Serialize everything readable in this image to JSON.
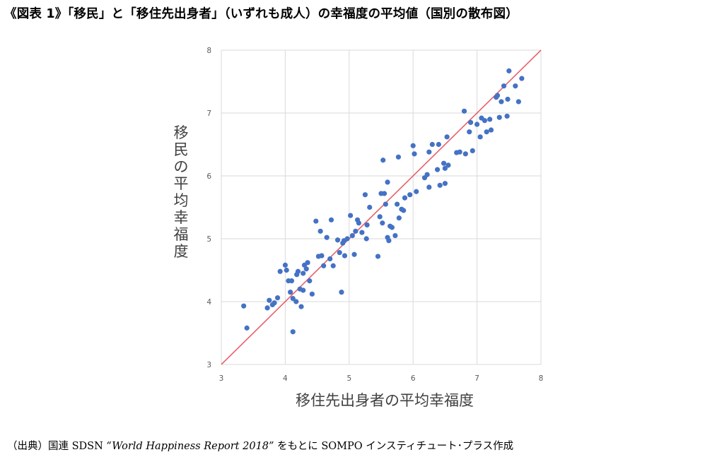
{
  "header": {
    "title": "《図表 1》「移民」と「移住先出身者」（いずれも成人）の幸福度の平均値（国別の散布図）"
  },
  "footer": {
    "source_prefix": "（出典）国連  SDSN ",
    "source_report": "“World Happiness Report 2018”",
    "source_suffix": " をもとに SOMPO インスティチュート･プラス作成"
  },
  "colors": {
    "points": "#4472c4",
    "diagonal": "#e8606a",
    "grid": "#d9d9d9",
    "tick_text": "#595959",
    "axis_title": "#404040"
  },
  "chart_data": {
    "type": "scatter",
    "title": "",
    "xlabel": "移住先出身者の平均幸福度",
    "ylabel": "移民の平均幸福度",
    "xlim": [
      3,
      8
    ],
    "ylim": [
      3,
      8
    ],
    "xticks": [
      "3",
      "4",
      "5",
      "6",
      "7",
      "8"
    ],
    "yticks": [
      "3",
      "4",
      "5",
      "6",
      "7",
      "8"
    ],
    "grid": true,
    "reference_line": {
      "from": [
        3,
        3
      ],
      "to": [
        8,
        8
      ],
      "label": ""
    },
    "points": [
      [
        3.35,
        3.93
      ],
      [
        3.4,
        3.58
      ],
      [
        3.72,
        3.9
      ],
      [
        3.75,
        4.02
      ],
      [
        3.8,
        3.95
      ],
      [
        3.83,
        3.98
      ],
      [
        3.88,
        4.06
      ],
      [
        3.92,
        4.48
      ],
      [
        4.0,
        4.58
      ],
      [
        4.02,
        4.5
      ],
      [
        4.05,
        4.33
      ],
      [
        4.08,
        4.15
      ],
      [
        4.1,
        4.33
      ],
      [
        4.12,
        4.05
      ],
      [
        4.12,
        3.52
      ],
      [
        4.17,
        4.0
      ],
      [
        4.18,
        4.43
      ],
      [
        4.2,
        4.48
      ],
      [
        4.23,
        4.2
      ],
      [
        4.25,
        3.92
      ],
      [
        4.28,
        4.18
      ],
      [
        4.28,
        4.45
      ],
      [
        4.3,
        4.58
      ],
      [
        4.33,
        4.52
      ],
      [
        4.35,
        4.62
      ],
      [
        4.38,
        4.33
      ],
      [
        4.42,
        4.12
      ],
      [
        4.48,
        5.28
      ],
      [
        4.52,
        4.72
      ],
      [
        4.55,
        5.12
      ],
      [
        4.57,
        4.73
      ],
      [
        4.6,
        4.57
      ],
      [
        4.65,
        5.02
      ],
      [
        4.7,
        4.68
      ],
      [
        4.72,
        5.3
      ],
      [
        4.75,
        4.57
      ],
      [
        4.82,
        4.98
      ],
      [
        4.85,
        4.78
      ],
      [
        4.88,
        4.15
      ],
      [
        4.9,
        4.93
      ],
      [
        4.92,
        4.97
      ],
      [
        4.93,
        4.73
      ],
      [
        4.97,
        5.0
      ],
      [
        5.02,
        5.37
      ],
      [
        5.05,
        5.05
      ],
      [
        5.08,
        4.75
      ],
      [
        5.1,
        5.12
      ],
      [
        5.13,
        5.3
      ],
      [
        5.15,
        5.25
      ],
      [
        5.2,
        5.1
      ],
      [
        5.25,
        5.7
      ],
      [
        5.27,
        5.0
      ],
      [
        5.28,
        5.22
      ],
      [
        5.32,
        5.5
      ],
      [
        5.45,
        4.72
      ],
      [
        5.48,
        5.35
      ],
      [
        5.5,
        5.72
      ],
      [
        5.52,
        5.25
      ],
      [
        5.53,
        6.25
      ],
      [
        5.55,
        5.72
      ],
      [
        5.57,
        5.55
      ],
      [
        5.6,
        5.9
      ],
      [
        5.6,
        5.02
      ],
      [
        5.62,
        4.97
      ],
      [
        5.64,
        5.2
      ],
      [
        5.67,
        5.18
      ],
      [
        5.72,
        5.05
      ],
      [
        5.75,
        5.55
      ],
      [
        5.77,
        6.3
      ],
      [
        5.78,
        5.33
      ],
      [
        5.82,
        5.47
      ],
      [
        5.85,
        5.45
      ],
      [
        5.87,
        5.65
      ],
      [
        5.95,
        5.7
      ],
      [
        6.0,
        6.48
      ],
      [
        6.02,
        6.35
      ],
      [
        6.05,
        5.75
      ],
      [
        6.18,
        5.97
      ],
      [
        6.22,
        6.02
      ],
      [
        6.25,
        5.82
      ],
      [
        6.25,
        6.38
      ],
      [
        6.3,
        6.5
      ],
      [
        6.38,
        6.1
      ],
      [
        6.4,
        6.5
      ],
      [
        6.42,
        5.85
      ],
      [
        6.48,
        6.2
      ],
      [
        6.5,
        5.88
      ],
      [
        6.5,
        6.12
      ],
      [
        6.53,
        6.62
      ],
      [
        6.55,
        6.17
      ],
      [
        6.68,
        6.37
      ],
      [
        6.73,
        6.38
      ],
      [
        6.8,
        7.03
      ],
      [
        6.82,
        6.35
      ],
      [
        6.88,
        6.7
      ],
      [
        6.9,
        6.85
      ],
      [
        6.93,
        6.4
      ],
      [
        7.0,
        6.82
      ],
      [
        7.05,
        6.62
      ],
      [
        7.07,
        6.92
      ],
      [
        7.12,
        6.88
      ],
      [
        7.15,
        6.7
      ],
      [
        7.2,
        6.9
      ],
      [
        7.22,
        6.73
      ],
      [
        7.3,
        7.25
      ],
      [
        7.32,
        7.28
      ],
      [
        7.35,
        6.93
      ],
      [
        7.38,
        7.18
      ],
      [
        7.42,
        7.43
      ],
      [
        7.47,
        6.95
      ],
      [
        7.48,
        7.22
      ],
      [
        7.5,
        7.67
      ],
      [
        7.6,
        7.43
      ],
      [
        7.65,
        7.18
      ],
      [
        7.7,
        7.55
      ]
    ]
  }
}
